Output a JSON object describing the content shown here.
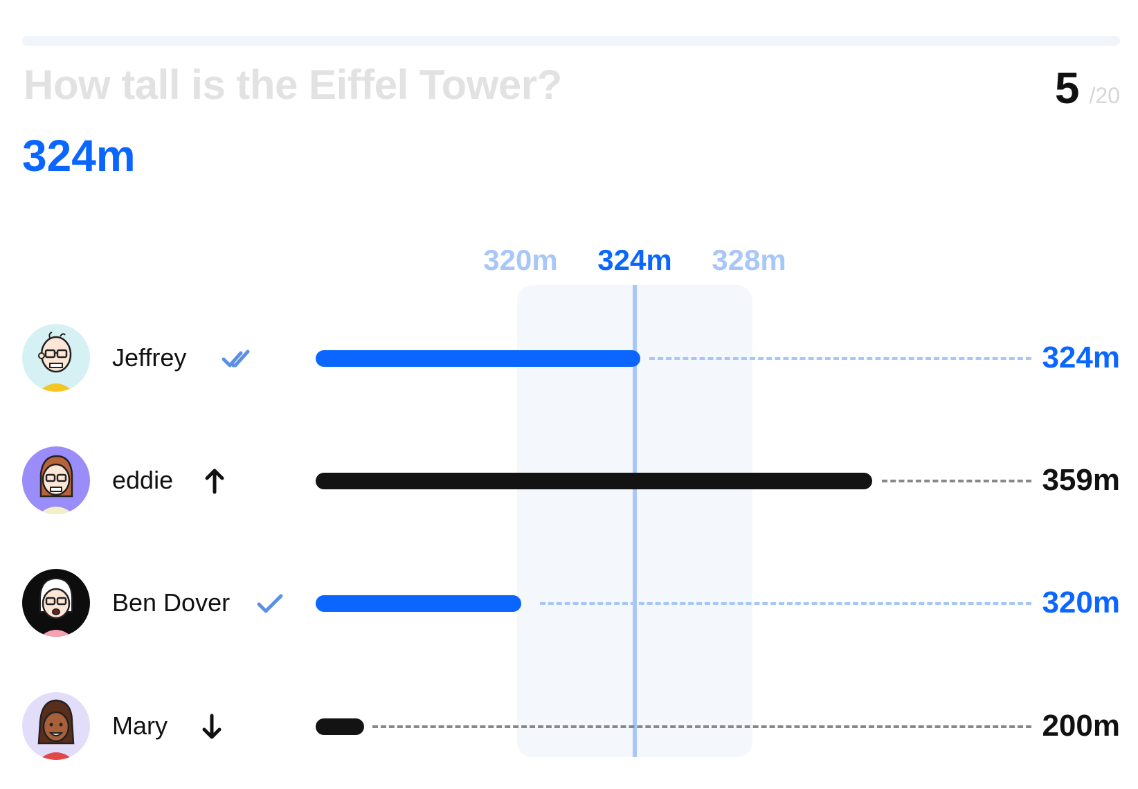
{
  "quiz": {
    "question": "How tall is the Eiffel Tower?",
    "current_question": "5",
    "total_questions": "/20",
    "progress_fraction": 0.25,
    "correct_answer": "324m"
  },
  "scale": {
    "low_label": "320m",
    "mid_label": "324m",
    "high_label": "328m"
  },
  "colors": {
    "accent": "#0a66ff",
    "accent_light": "#a9c7f6",
    "neutral_bar": "#131313"
  },
  "players": [
    {
      "name": "Jeffrey",
      "status_icon": "double-check-icon",
      "guess": "324m",
      "correct": true
    },
    {
      "name": "eddie",
      "status_icon": "arrow-up-icon",
      "guess": "359m",
      "correct": false
    },
    {
      "name": "Ben Dover",
      "status_icon": "check-icon",
      "guess": "320m",
      "correct": true
    },
    {
      "name": "Mary",
      "status_icon": "arrow-down-icon",
      "guess": "200m",
      "correct": false
    }
  ]
}
